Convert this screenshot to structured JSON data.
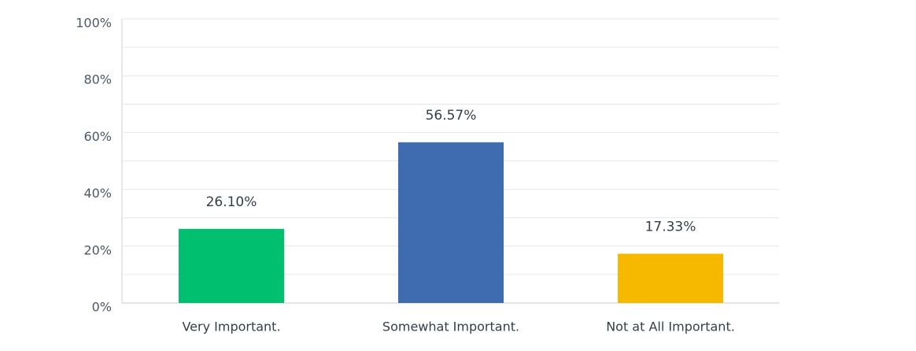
{
  "chart_data": {
    "type": "bar",
    "categories": [
      "Very Important.",
      "Somewhat Important.",
      "Not at All Important."
    ],
    "values": [
      26.1,
      56.57,
      17.33
    ],
    "value_labels": [
      "26.10%",
      "56.57%",
      "17.33%"
    ],
    "colors": [
      "#00bf6f",
      "#3f6cb0",
      "#f6b900"
    ],
    "ylim": [
      0,
      100
    ],
    "yticks": [
      {
        "value": 0,
        "label": "0%"
      },
      {
        "value": 20,
        "label": "20%"
      },
      {
        "value": 40,
        "label": "40%"
      },
      {
        "value": 60,
        "label": "60%"
      },
      {
        "value": 80,
        "label": "80%"
      },
      {
        "value": 100,
        "label": "100%"
      }
    ],
    "minor_yticks": [
      10,
      30,
      50,
      70,
      90
    ],
    "grid": true
  }
}
